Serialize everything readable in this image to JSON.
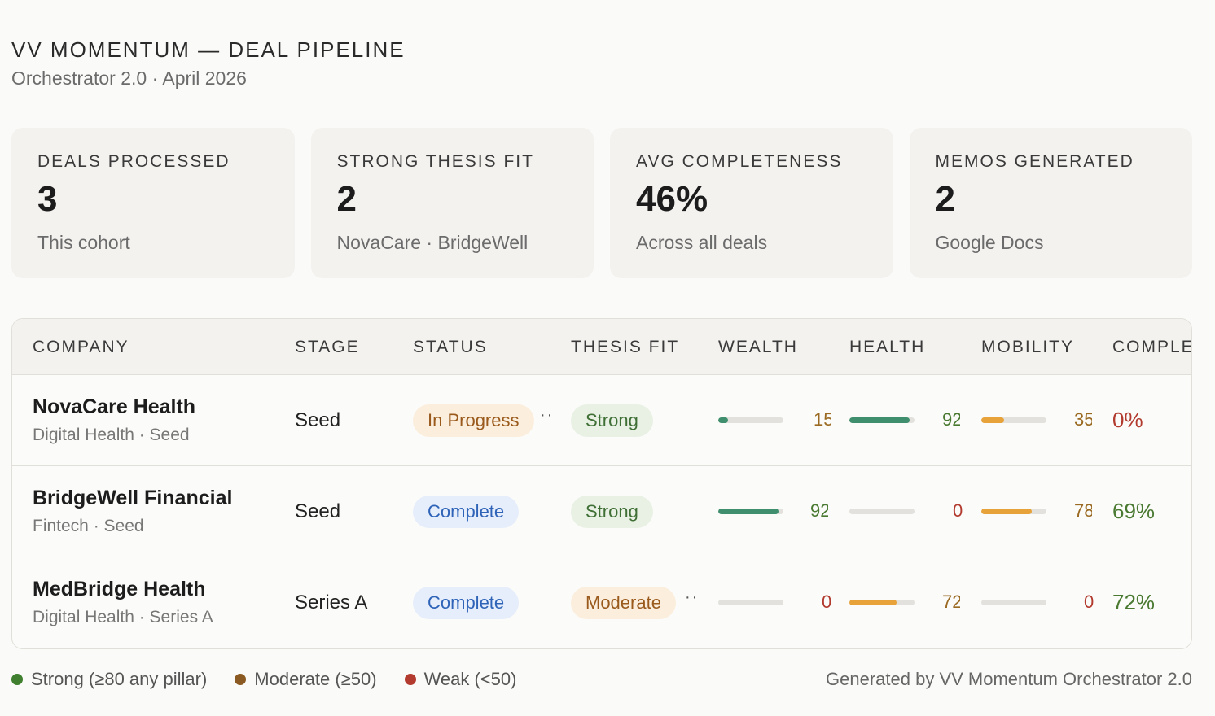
{
  "header": {
    "title": "VV MOMENTUM — DEAL PIPELINE",
    "subtitle": "Orchestrator 2.0 · April 2026"
  },
  "kpis": [
    {
      "label": "DEALS PROCESSED",
      "value": "3",
      "sub": "This cohort"
    },
    {
      "label": "STRONG THESIS FIT",
      "value": "2",
      "sub": "NovaCare · BridgeWell"
    },
    {
      "label": "AVG COMPLETENESS",
      "value": "46%",
      "sub": "Across all deals"
    },
    {
      "label": "MEMOS GENERATED",
      "value": "2",
      "sub": "Google Docs"
    }
  ],
  "table": {
    "columns": [
      "COMPANY",
      "STAGE",
      "STATUS",
      "THESIS FIT",
      "WEALTH",
      "HEALTH",
      "MOBILITY",
      "COMPLE"
    ],
    "rows": [
      {
        "name": "NovaCare Health",
        "meta": "Digital Health · Seed",
        "stage": "Seed",
        "status": "In Progress",
        "fit": "Strong",
        "wealth": "15",
        "health": "92",
        "mobility": "35",
        "completeness": "0%"
      },
      {
        "name": "BridgeWell Financial",
        "meta": "Fintech · Seed",
        "stage": "Seed",
        "status": "Complete",
        "fit": "Strong",
        "wealth": "92",
        "health": "0",
        "mobility": "78",
        "completeness": "69%"
      },
      {
        "name": "MedBridge Health",
        "meta": "Digital Health · Series A",
        "stage": "Series A",
        "status": "Complete",
        "fit": "Moderate",
        "wealth": "0",
        "health": "72",
        "mobility": "0",
        "completeness": "72%"
      }
    ]
  },
  "legend": [
    {
      "label": "Strong (≥80 any pillar)",
      "color": "#3f7f2f"
    },
    {
      "label": "Moderate (≥50)",
      "color": "#8a5a22"
    },
    {
      "label": "Weak (<50)",
      "color": "#b23a2e"
    }
  ],
  "footer": "Generated by VV Momentum Orchestrator 2.0",
  "colors": {
    "green": "#3f8f6f",
    "orange": "#e8a23a",
    "score_green": "#4a7a32",
    "score_orange": "#9a6a22",
    "score_red": "#b23a2e"
  }
}
